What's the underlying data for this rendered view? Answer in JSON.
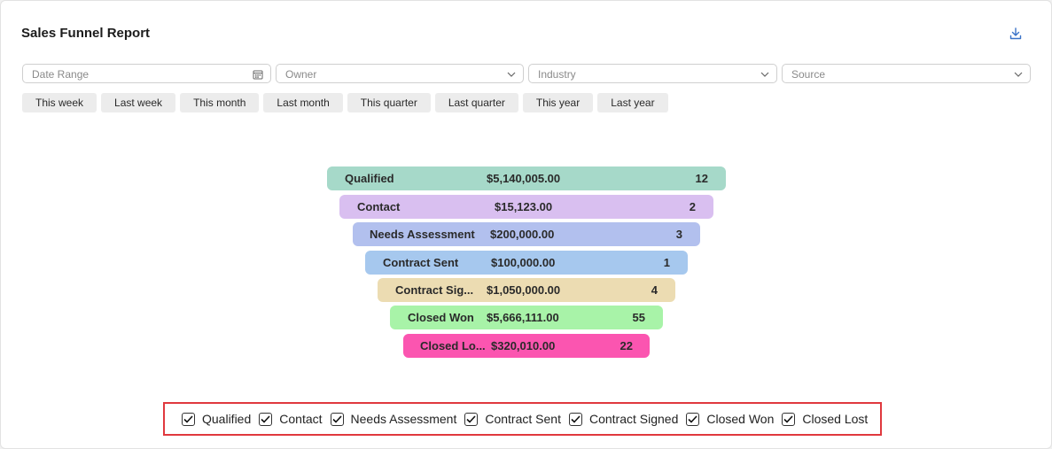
{
  "report": {
    "title": "Sales Funnel Report"
  },
  "filters": {
    "date_range": {
      "placeholder": "Date Range"
    },
    "owner": {
      "placeholder": "Owner"
    },
    "industry": {
      "placeholder": "Industry"
    },
    "source": {
      "placeholder": "Source"
    }
  },
  "periods": [
    "This week",
    "Last week",
    "This month",
    "Last month",
    "This quarter",
    "Last quarter",
    "This year",
    "Last year"
  ],
  "funnel": [
    {
      "label": "Qualified",
      "amount": "$5,140,005.00",
      "count": "12",
      "color": "#a6d9c9"
    },
    {
      "label": "Contact",
      "amount": "$15,123.00",
      "count": "2",
      "color": "#d9bff0"
    },
    {
      "label": "Needs Assessment",
      "amount": "$200,000.00",
      "count": "3",
      "color": "#b2c0ee"
    },
    {
      "label": "Contract Sent",
      "amount": "$100,000.00",
      "count": "1",
      "color": "#a6c8ee"
    },
    {
      "label": "Contract Sig...",
      "amount": "$1,050,000.00",
      "count": "4",
      "color": "#ecdcb2"
    },
    {
      "label": "Closed Won",
      "amount": "$5,666,111.00",
      "count": "55",
      "color": "#a8f3a8"
    },
    {
      "label": "Closed Lo...",
      "amount": "$320,010.00",
      "count": "22",
      "color": "#fb55b0"
    }
  ],
  "legend": [
    {
      "label": "Qualified",
      "checked": true
    },
    {
      "label": "Contact",
      "checked": true
    },
    {
      "label": "Needs Assessment",
      "checked": true
    },
    {
      "label": "Contract Sent",
      "checked": true
    },
    {
      "label": "Contract Signed",
      "checked": true
    },
    {
      "label": "Closed Won",
      "checked": true
    },
    {
      "label": "Closed Lost",
      "checked": true
    }
  ],
  "icons": {
    "download": "download-icon",
    "calendar": "calendar-icon",
    "dropdown": "chevron-down-icon",
    "check": "check-icon"
  }
}
